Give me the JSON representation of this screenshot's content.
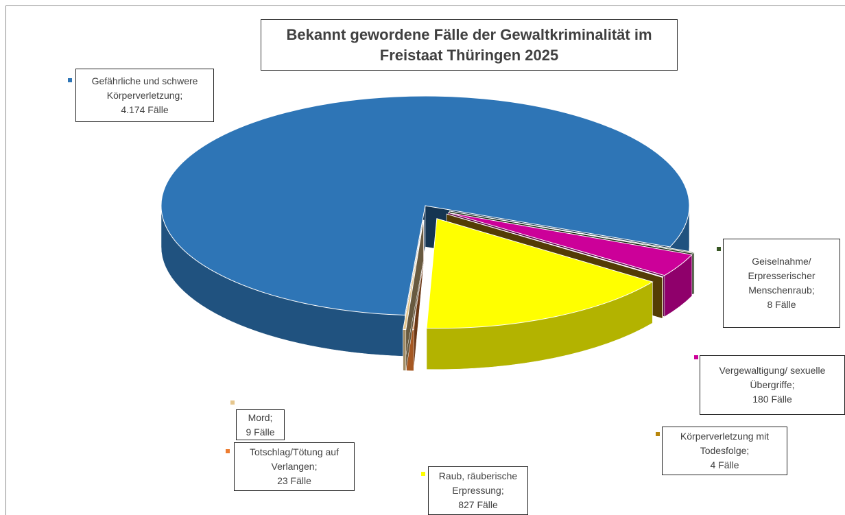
{
  "chart_data": {
    "type": "pie",
    "title": "Bekannt gewordene Fälle der Gewaltkriminalität im Freistaat Thüringen 2025",
    "categories": [
      "Gefährliche und schwere Körperverletzung;",
      "Geiselnahme/ Erpresserischer Menschenraub;",
      "Vergewaltigung/ sexuelle Übergriffe;",
      "Körperverletzung mit Todesfolge;",
      "Raub, räuberische Erpressung;",
      "Totschlag/Tötung auf Verlangen;",
      "Mord;"
    ],
    "values": [
      4174,
      8,
      180,
      4,
      827,
      23,
      9
    ],
    "value_labels": [
      "4.174 Fälle",
      "8 Fälle",
      "180 Fälle",
      "4 Fälle",
      "827 Fälle",
      "23 Fälle",
      "9 Fälle"
    ],
    "colors": [
      "#2e75b6",
      "#375623",
      "#cc0099",
      "#b8860b",
      "#ffff00",
      "#ed7d31",
      "#e6c78e"
    ]
  }
}
